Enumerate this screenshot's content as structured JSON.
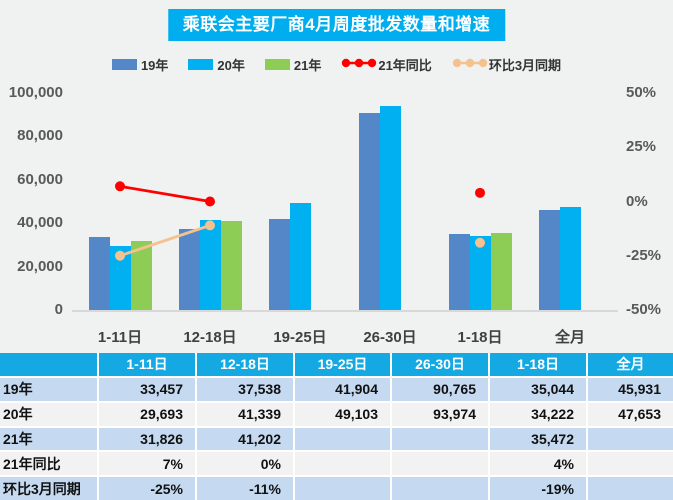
{
  "page": {
    "background": "#F0F1F1",
    "accent_cyan": "#00ADEE"
  },
  "chart_data": {
    "type": "bar",
    "title": "乘联会主要厂商4月周度批发数量和增速",
    "title_bg": "#00ADEE",
    "categories": [
      "1-11日",
      "12-18日",
      "19-25日",
      "26-30日",
      "1-18日",
      "全月"
    ],
    "bar_series": [
      {
        "name": "19年",
        "color": "#5487C8",
        "values": [
          33457,
          37538,
          41904,
          90765,
          35044,
          45931
        ]
      },
      {
        "name": "20年",
        "color": "#00B0F0",
        "values": [
          29693,
          41339,
          49103,
          93974,
          34222,
          47653
        ]
      },
      {
        "name": "21年",
        "color": "#8DCD55",
        "values": [
          31826,
          41202,
          null,
          null,
          35472,
          null
        ]
      }
    ],
    "line_series": [
      {
        "name": "21年同比",
        "color": "#FF0000",
        "unit": "%",
        "values": [
          7,
          0,
          null,
          null,
          4,
          null
        ]
      },
      {
        "name": "环比3月同期",
        "color": "#F5C28F",
        "unit": "%",
        "values": [
          -25,
          -11,
          null,
          null,
          -19,
          null
        ]
      }
    ],
    "left_axis": {
      "min": 0,
      "max": 100000,
      "ticks": [
        {
          "label": "100,000",
          "v": 100000
        },
        {
          "label": "80,000",
          "v": 80000
        },
        {
          "label": "60,000",
          "v": 60000
        },
        {
          "label": "40,000",
          "v": 40000
        },
        {
          "label": "20,000",
          "v": 20000
        },
        {
          "label": "0",
          "v": 0
        }
      ]
    },
    "right_axis": {
      "min": -50,
      "max": 50,
      "ticks": [
        {
          "label": "50%",
          "v": 50
        },
        {
          "label": "25%",
          "v": 25
        },
        {
          "label": "0%",
          "v": 0
        },
        {
          "label": "-25%",
          "v": -25
        },
        {
          "label": "-50%",
          "v": -50
        }
      ]
    },
    "legend_position": "top",
    "grid": false
  },
  "table": {
    "header_bg": "#14A9E2",
    "row_bg_odd": "#C5D9F1",
    "row_bg_even": "#F2F2F2",
    "header": [
      "",
      "1-11日",
      "12-18日",
      "19-25日",
      "26-30日",
      "1-18日",
      "全月"
    ],
    "rows": [
      {
        "label": "19年",
        "values": [
          "33,457",
          "37,538",
          "41,904",
          "90,765",
          "35,044",
          "45,931"
        ]
      },
      {
        "label": "20年",
        "values": [
          "29,693",
          "41,339",
          "49,103",
          "93,974",
          "34,222",
          "47,653"
        ]
      },
      {
        "label": "21年",
        "values": [
          "31,826",
          "41,202",
          "",
          "",
          "35,472",
          ""
        ]
      },
      {
        "label": "21年同比",
        "values": [
          "7%",
          "0%",
          "",
          "",
          "4%",
          ""
        ]
      },
      {
        "label": "环比3月同期",
        "values": [
          "-25%",
          "-11%",
          "",
          "",
          "-19%",
          ""
        ]
      }
    ]
  }
}
